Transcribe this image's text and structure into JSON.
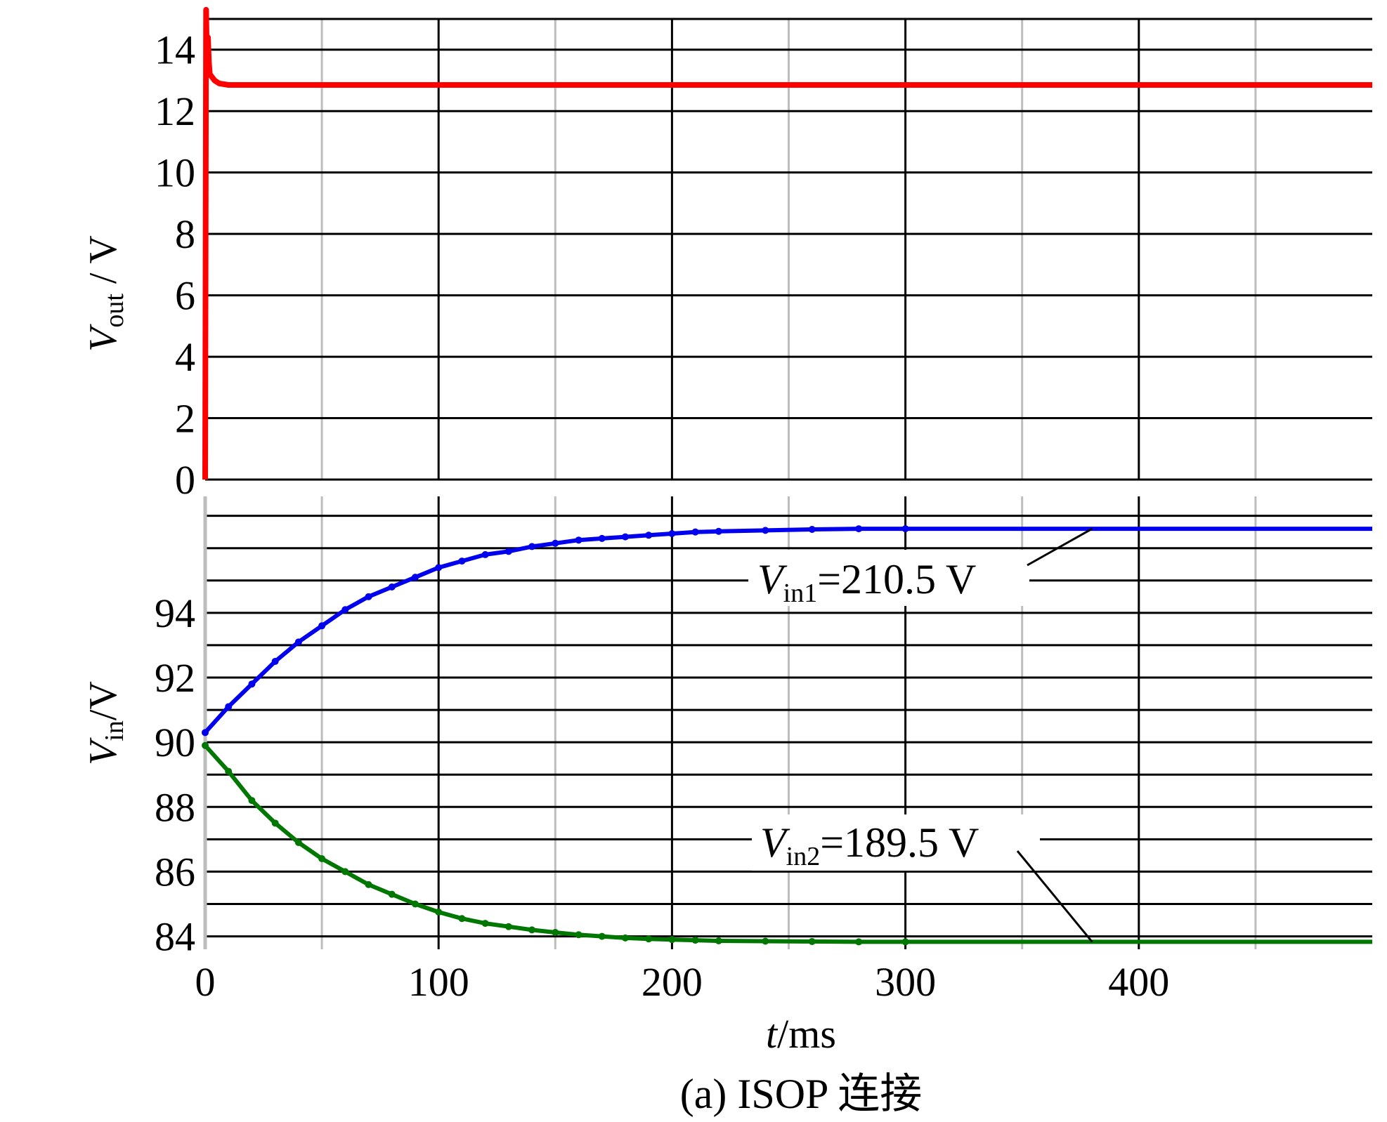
{
  "caption": "(a) ISOP 连接",
  "chart_data": [
    {
      "type": "line",
      "panel": "top",
      "ylabel_main": "V",
      "ylabel_sub": "out",
      "ylabel_unit": " / V",
      "ylim": [
        0,
        15
      ],
      "yticks": [
        0,
        2,
        4,
        6,
        8,
        10,
        12,
        14
      ],
      "xlim": [
        0,
        500
      ],
      "grid": true,
      "series": [
        {
          "color": "#ff0000",
          "x": [
            0,
            0.4,
            0.8,
            1.2,
            1.6,
            2,
            3,
            4,
            6,
            10,
            500
          ],
          "y": [
            0,
            15.3,
            13.5,
            14.4,
            13.6,
            13.2,
            13.1,
            13.0,
            12.9,
            12.85,
            12.85
          ]
        }
      ]
    },
    {
      "type": "line",
      "panel": "bottom",
      "ylabel_main": "V",
      "ylabel_sub": "in",
      "ylabel_unit": "/V",
      "ylim": [
        83.6,
        97.6
      ],
      "yticks": [
        84,
        86,
        88,
        90,
        92,
        94
      ],
      "xlabel_main": "t",
      "xlabel_unit": "/ms",
      "xlim": [
        0,
        500
      ],
      "xticks": [
        0,
        100,
        200,
        300,
        400
      ],
      "grid": true,
      "series": [
        {
          "color": "#0000ee",
          "x": [
            0,
            10,
            20,
            30,
            40,
            50,
            60,
            70,
            80,
            90,
            100,
            110,
            120,
            130,
            140,
            150,
            160,
            170,
            180,
            190,
            200,
            210,
            220,
            240,
            260,
            280,
            300,
            400,
            500
          ],
          "y": [
            90.3,
            91.1,
            91.8,
            92.5,
            93.1,
            93.6,
            94.1,
            94.5,
            94.8,
            95.1,
            95.4,
            95.6,
            95.8,
            95.9,
            96.05,
            96.15,
            96.25,
            96.3,
            96.35,
            96.4,
            96.45,
            96.5,
            96.52,
            96.55,
            96.58,
            96.6,
            96.6,
            96.6,
            96.6
          ],
          "label_main": "V",
          "label_sub": "in1",
          "label_value": "=210.5 V"
        },
        {
          "color": "#007700",
          "x": [
            0,
            10,
            20,
            30,
            40,
            50,
            60,
            70,
            80,
            90,
            100,
            110,
            120,
            130,
            140,
            150,
            160,
            170,
            180,
            190,
            200,
            210,
            220,
            240,
            260,
            280,
            300,
            400,
            500
          ],
          "y": [
            89.9,
            89.1,
            88.2,
            87.5,
            86.9,
            86.4,
            86.0,
            85.6,
            85.3,
            85.0,
            84.75,
            84.55,
            84.4,
            84.3,
            84.2,
            84.12,
            84.05,
            84.0,
            83.95,
            83.92,
            83.9,
            83.88,
            83.86,
            83.85,
            83.84,
            83.83,
            83.83,
            83.83,
            83.83
          ],
          "label_main": "V",
          "label_sub": "in2",
          "label_value": "=189.5 V"
        }
      ]
    }
  ]
}
